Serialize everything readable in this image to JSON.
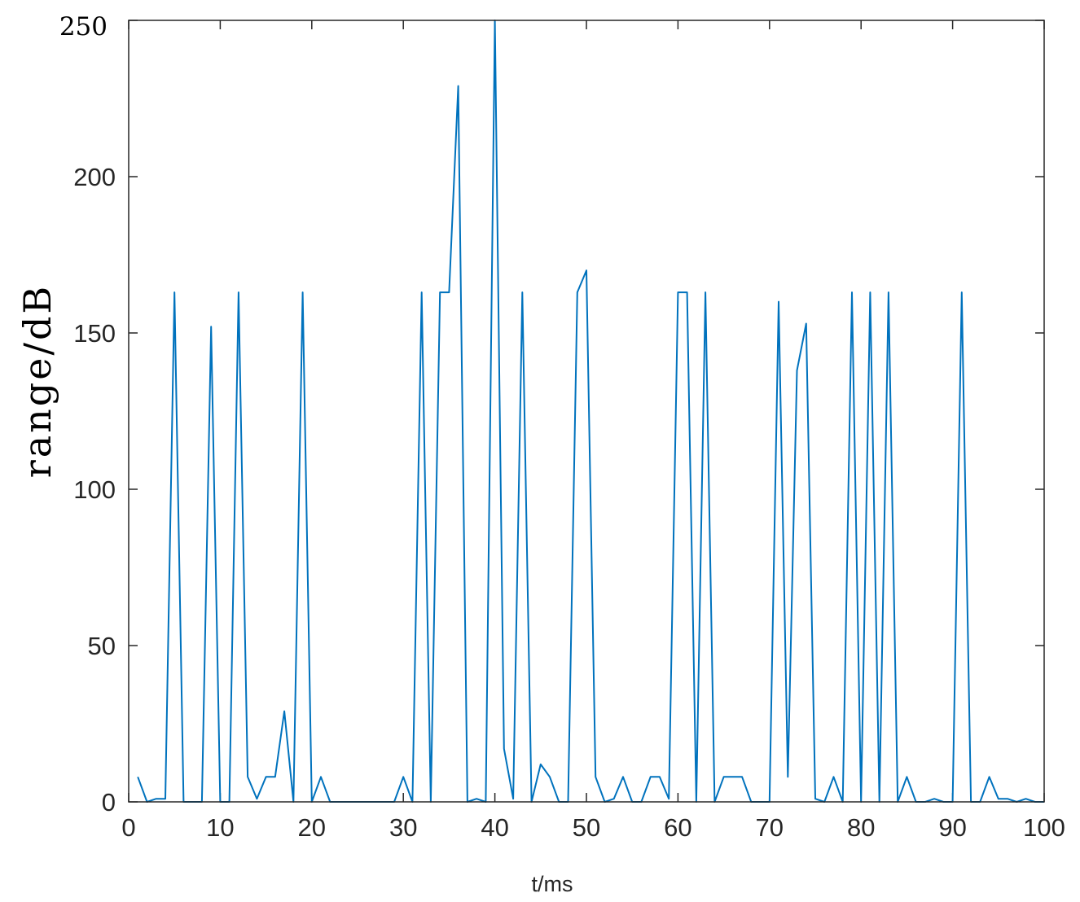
{
  "chart_data": {
    "type": "line",
    "xlabel": "t/ms",
    "ylabel": "range/dB",
    "xlim": [
      0,
      100
    ],
    "ylim": [
      0,
      250
    ],
    "xticks": [
      0,
      10,
      20,
      30,
      40,
      50,
      60,
      70,
      80,
      90,
      100
    ],
    "yticks": [
      0,
      50,
      100,
      150,
      200,
      250
    ],
    "grid": false,
    "line_color": "#0072BD",
    "series": [
      {
        "x": [
          1,
          2,
          3,
          4,
          5,
          6,
          7,
          8,
          9,
          10,
          11,
          12,
          13,
          14,
          15,
          16,
          17,
          18,
          19,
          20,
          21,
          22,
          23,
          24,
          25,
          26,
          27,
          28,
          29,
          30,
          31,
          32,
          33,
          34,
          35,
          36,
          37,
          38,
          39,
          40,
          41,
          42,
          43,
          44,
          45,
          46,
          47,
          48,
          49,
          50,
          51,
          52,
          53,
          54,
          55,
          56,
          57,
          58,
          59,
          60,
          61,
          62,
          63,
          64,
          65,
          66,
          67,
          68,
          69,
          70,
          71,
          72,
          73,
          74,
          75,
          76,
          77,
          78,
          79,
          80,
          81,
          82,
          83,
          84,
          85,
          86,
          87,
          88,
          89,
          90,
          91,
          92,
          93,
          94,
          95,
          96,
          97,
          98,
          99,
          100
        ],
        "y": [
          8,
          0,
          1,
          1,
          163,
          0,
          0,
          0,
          152,
          0,
          0,
          163,
          8,
          1,
          8,
          8,
          29,
          0,
          163,
          0,
          8,
          0,
          0,
          0,
          0,
          0,
          0,
          0,
          0,
          8,
          0,
          163,
          0,
          163,
          163,
          229,
          0,
          1,
          0,
          250,
          17,
          1,
          163,
          0,
          12,
          8,
          0,
          0,
          163,
          170,
          8,
          0,
          1,
          8,
          0,
          0,
          8,
          8,
          1,
          163,
          163,
          0,
          163,
          0,
          8,
          8,
          8,
          0,
          0,
          0,
          160,
          8,
          138,
          153,
          1,
          0,
          8,
          0,
          163,
          0,
          163,
          0,
          163,
          0,
          8,
          0,
          0,
          1,
          0,
          0,
          163,
          0,
          0,
          8,
          1,
          1,
          0,
          1,
          0,
          0
        ]
      }
    ]
  }
}
